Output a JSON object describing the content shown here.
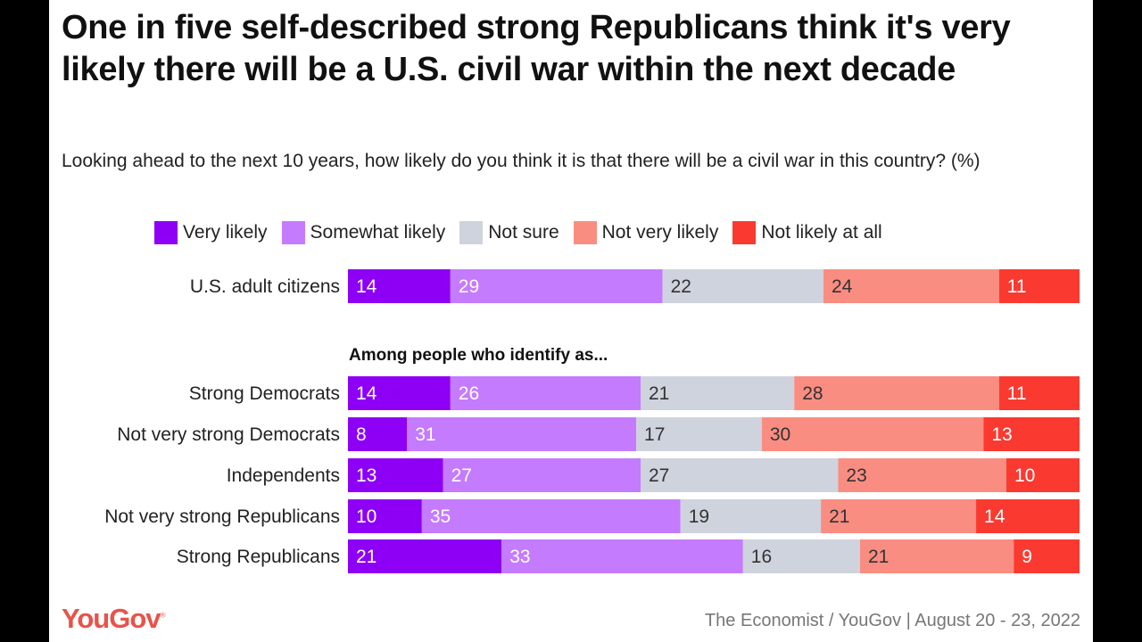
{
  "chart_data": {
    "type": "bar",
    "orientation": "horizontal",
    "stacked": true,
    "title": "One in five self-described strong Republicans think it's very likely there will be a U.S. civil war within the next decade",
    "subtitle": "Looking ahead to the next 10 years, how likely do you think it is that there will be a civil war in this country? (%)",
    "section_label": "Among people who identify as...",
    "legend_position": "top",
    "categories": [
      "U.S. adult citizens",
      "Strong Democrats",
      "Not very strong Democrats",
      "Independents",
      "Not very strong Republicans",
      "Strong Republicans"
    ],
    "series": [
      {
        "name": "Very likely",
        "color": "#8e00f5",
        "label_color": "#ffffff",
        "values": [
          14,
          14,
          8,
          13,
          10,
          21
        ]
      },
      {
        "name": "Somewhat likely",
        "color": "#c47bfd",
        "label_color": "#ffffff",
        "values": [
          29,
          26,
          31,
          27,
          35,
          33
        ]
      },
      {
        "name": "Not sure",
        "color": "#cfd3dd",
        "label_color": "#333333",
        "values": [
          22,
          21,
          17,
          27,
          19,
          16
        ]
      },
      {
        "name": "Not very likely",
        "color": "#fa8d82",
        "label_color": "#333333",
        "values": [
          24,
          28,
          30,
          23,
          21,
          21
        ]
      },
      {
        "name": "Not likely at all",
        "color": "#fa3a30",
        "label_color": "#ffffff",
        "values": [
          11,
          11,
          13,
          10,
          14,
          9
        ]
      }
    ]
  },
  "footer": {
    "brand": "YouGov",
    "source": "The Economist / YouGov | August 20 - 23, 2022"
  }
}
